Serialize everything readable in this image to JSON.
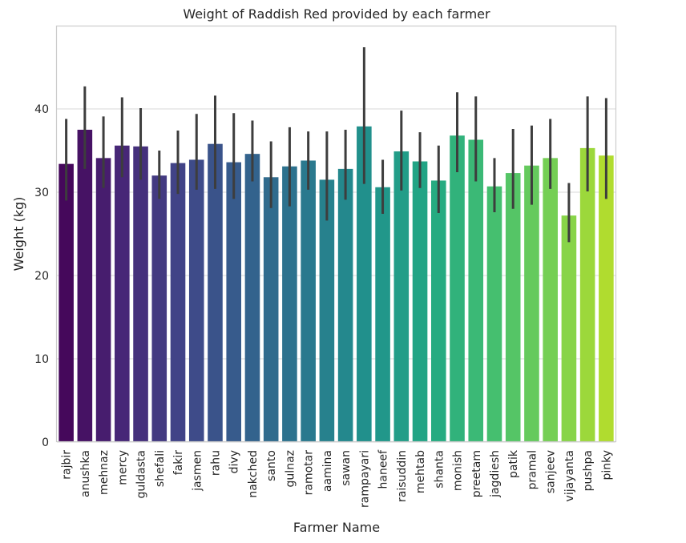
{
  "chart_data": {
    "type": "bar",
    "title": "Weight of Raddish Red provided by each farmer",
    "xlabel": "Farmer Name",
    "ylabel": "Weight (kg)",
    "ylim": [
      0,
      50
    ],
    "yticks": [
      0,
      10,
      20,
      30,
      40
    ],
    "grid": true,
    "palette": "viridis",
    "categories": [
      "rajbir",
      "anushka",
      "mehnaz",
      "mercy",
      "guldasta",
      "shefali",
      "fakir",
      "jasmen",
      "rahu",
      "divy",
      "nakched",
      "santo",
      "gulnaz",
      "ramotar",
      "aamina",
      "sawan",
      "rampayari",
      "haneef",
      "raisuddin",
      "mehtab",
      "shanta",
      "monish",
      "preetam",
      "jagdiesh",
      "patik",
      "pramal",
      "sanjeev",
      "vijayanta",
      "pushpa",
      "pinky"
    ],
    "values": [
      33.4,
      37.5,
      34.1,
      35.6,
      35.5,
      32.0,
      33.5,
      33.9,
      35.8,
      33.6,
      34.6,
      31.8,
      33.1,
      33.8,
      31.5,
      32.8,
      37.9,
      30.6,
      34.9,
      33.7,
      31.4,
      36.8,
      36.3,
      30.7,
      32.3,
      33.2,
      34.1,
      27.2,
      35.3,
      34.4
    ],
    "error_low": [
      29.0,
      32.8,
      30.5,
      31.8,
      31.5,
      29.2,
      29.8,
      30.3,
      30.4,
      29.2,
      31.3,
      28.1,
      28.3,
      30.3,
      26.6,
      29.1,
      31.0,
      27.4,
      30.2,
      30.5,
      27.5,
      32.4,
      31.3,
      27.6,
      28.0,
      28.5,
      30.4,
      24.0,
      30.1,
      29.2
    ],
    "error_high": [
      38.8,
      42.7,
      39.1,
      41.4,
      40.1,
      35.0,
      37.4,
      39.4,
      41.6,
      39.5,
      38.6,
      36.1,
      37.8,
      37.3,
      37.3,
      37.5,
      47.4,
      33.9,
      39.8,
      37.2,
      35.6,
      42.0,
      41.5,
      34.1,
      37.6,
      38.0,
      38.8,
      31.1,
      41.5,
      41.3
    ]
  }
}
